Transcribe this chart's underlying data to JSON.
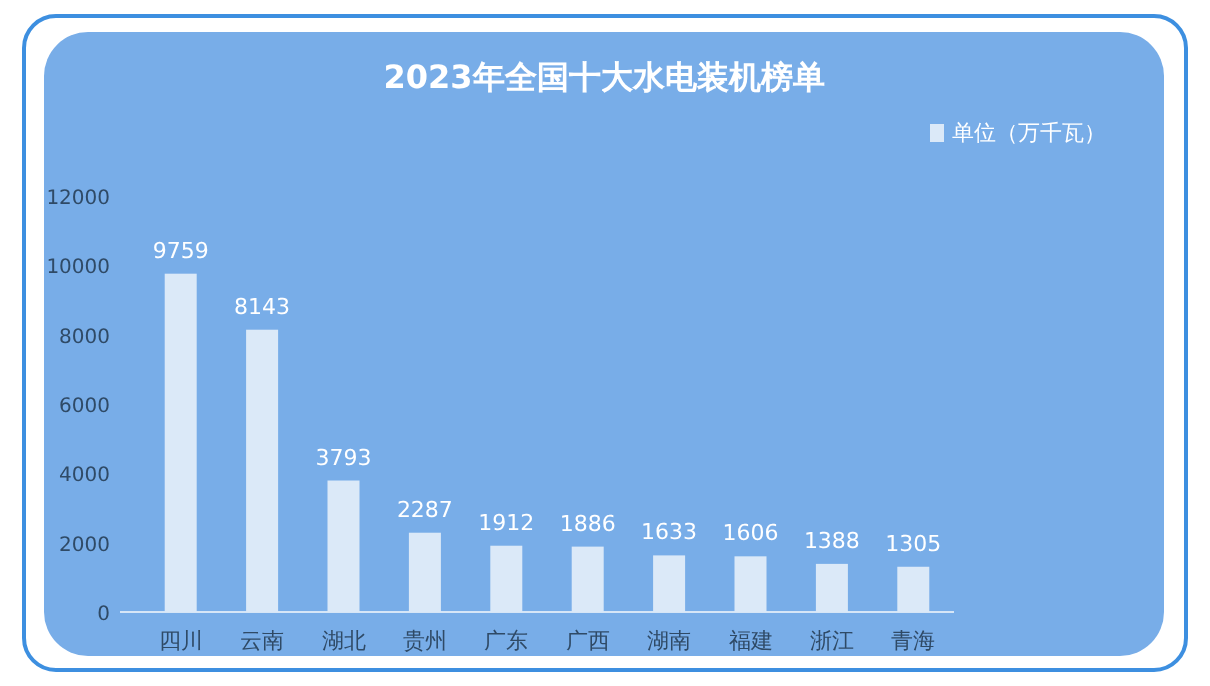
{
  "chart_data": {
    "type": "bar",
    "title": "2023年全国十大水电装机榜单",
    "categories": [
      "四川",
      "云南",
      "湖北",
      "贵州",
      "广东",
      "广西",
      "湖南",
      "福建",
      "浙江",
      "青海"
    ],
    "series": [
      {
        "name": "单位（万千瓦）",
        "color": "#dbe9f8",
        "values": [
          9759,
          8143,
          3793,
          2287,
          1912,
          1886,
          1633,
          1606,
          1388,
          1305
        ]
      }
    ],
    "ylim": [
      0,
      12000
    ],
    "yticks": [
      0,
      2000,
      4000,
      6000,
      8000,
      10000,
      12000
    ],
    "data_labels": true,
    "legend": "top right",
    "grid": false
  }
}
